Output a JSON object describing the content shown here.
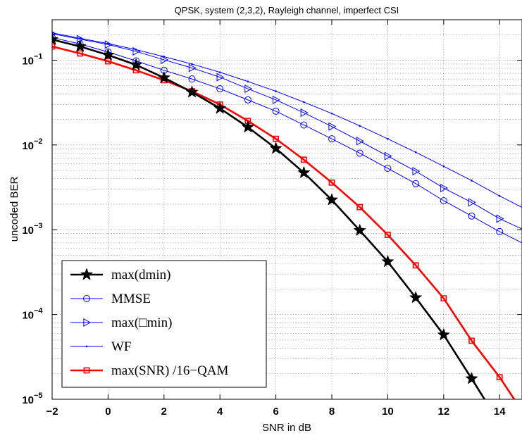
{
  "chart_data": {
    "type": "line",
    "title": "QPSK, system (2,3,2), Rayleigh channel, imperfect CSI",
    "xlabel": "SNR in dB",
    "ylabel": "uncoded BER",
    "xlim": [
      -2,
      14.8
    ],
    "ylim": [
      1e-05,
      0.3
    ],
    "y_scale": "log",
    "grid": true,
    "legend_position": "bottom-left",
    "x_ticks": [
      "−2",
      "0",
      "2",
      "4",
      "6",
      "8",
      "10",
      "12",
      "14"
    ],
    "y_ticks": [
      {
        "base": "10",
        "exp": "−1"
      },
      {
        "base": "10",
        "exp": "−2"
      },
      {
        "base": "10",
        "exp": "−3"
      },
      {
        "base": "10",
        "exp": "−4"
      },
      {
        "base": "10",
        "exp": "−5"
      }
    ],
    "series": [
      {
        "name": "max(dmin)",
        "color": "#000000",
        "marker": "star",
        "x": [
          -2,
          -1,
          0,
          1,
          2,
          3,
          4,
          5,
          6,
          7,
          8,
          9,
          10,
          11,
          12,
          13,
          14
        ],
        "y": [
          0.175,
          0.145,
          0.115,
          0.088,
          0.062,
          0.042,
          0.027,
          0.0162,
          0.0091,
          0.0047,
          0.00225,
          0.00098,
          0.00042,
          0.000158,
          5.75e-05,
          1.75e-05,
          5.2e-06
        ]
      },
      {
        "name": "MMSE",
        "color": "#0000ff",
        "marker": "circle",
        "x": [
          -2,
          -1,
          0,
          1,
          2,
          3,
          4,
          5,
          6,
          7,
          8,
          9,
          10,
          11,
          12,
          13,
          14,
          15
        ],
        "y": [
          0.185,
          0.155,
          0.125,
          0.098,
          0.076,
          0.06,
          0.046,
          0.034,
          0.025,
          0.0172,
          0.0118,
          0.008,
          0.0053,
          0.0035,
          0.0022,
          0.00145,
          0.00095,
          0.00065
        ]
      },
      {
        "name": "max(□min)",
        "color": "#0000ff",
        "marker": "triangle-right",
        "x": [
          -2,
          -1,
          0,
          1,
          2,
          3,
          4,
          5,
          6,
          7,
          8,
          9,
          10,
          11,
          12,
          13,
          14,
          15
        ],
        "y": [
          0.205,
          0.177,
          0.153,
          0.127,
          0.101,
          0.081,
          0.063,
          0.046,
          0.034,
          0.024,
          0.0165,
          0.0111,
          0.0074,
          0.0049,
          0.0031,
          0.0021,
          0.00135,
          0.00095
        ]
      },
      {
        "name": "WF",
        "color": "#0000ff",
        "marker": "dot",
        "x": [
          -2,
          -1,
          0,
          1,
          2,
          3,
          4,
          5,
          6,
          7,
          8,
          9,
          10,
          11,
          12,
          13,
          14,
          15
        ],
        "y": [
          0.21,
          0.181,
          0.157,
          0.133,
          0.11,
          0.09,
          0.072,
          0.056,
          0.043,
          0.032,
          0.0235,
          0.0168,
          0.0118,
          0.0082,
          0.0056,
          0.0038,
          0.0025,
          0.0017
        ]
      },
      {
        "name": "max(SNR) /16−QAM",
        "color": "#ff0000",
        "marker": "square",
        "x": [
          -2,
          -1,
          0,
          1,
          2,
          3,
          4,
          5,
          6,
          7,
          8,
          9,
          10,
          11,
          12,
          13,
          14,
          15
        ],
        "y": [
          0.145,
          0.12,
          0.097,
          0.076,
          0.058,
          0.043,
          0.03,
          0.0192,
          0.0118,
          0.0067,
          0.0036,
          0.00185,
          0.00087,
          0.00038,
          0.000155,
          4.9e-05,
          1.82e-05,
          5.8e-06
        ]
      }
    ]
  }
}
